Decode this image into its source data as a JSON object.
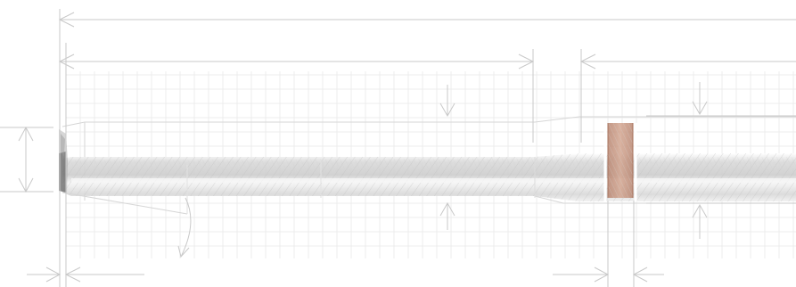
{
  "drawing": {
    "kind": "technical-sketch",
    "grid": true,
    "colors": {
      "background": "#ffffff",
      "dimension_lines": "#c9c9c9",
      "grid_lines": "#ececec",
      "shaft_light": "#e4e4e4",
      "shaft_mid": "#cfcfcf",
      "shaft_highlight": "#f7f7f7",
      "tip_dark": "#6f6f6f",
      "band_copper": "#c99a86",
      "band_copper_dark": "#b88570"
    },
    "components": [
      "tapered-tip",
      "shaft",
      "copper-band",
      "dimension-lines",
      "grid"
    ]
  }
}
